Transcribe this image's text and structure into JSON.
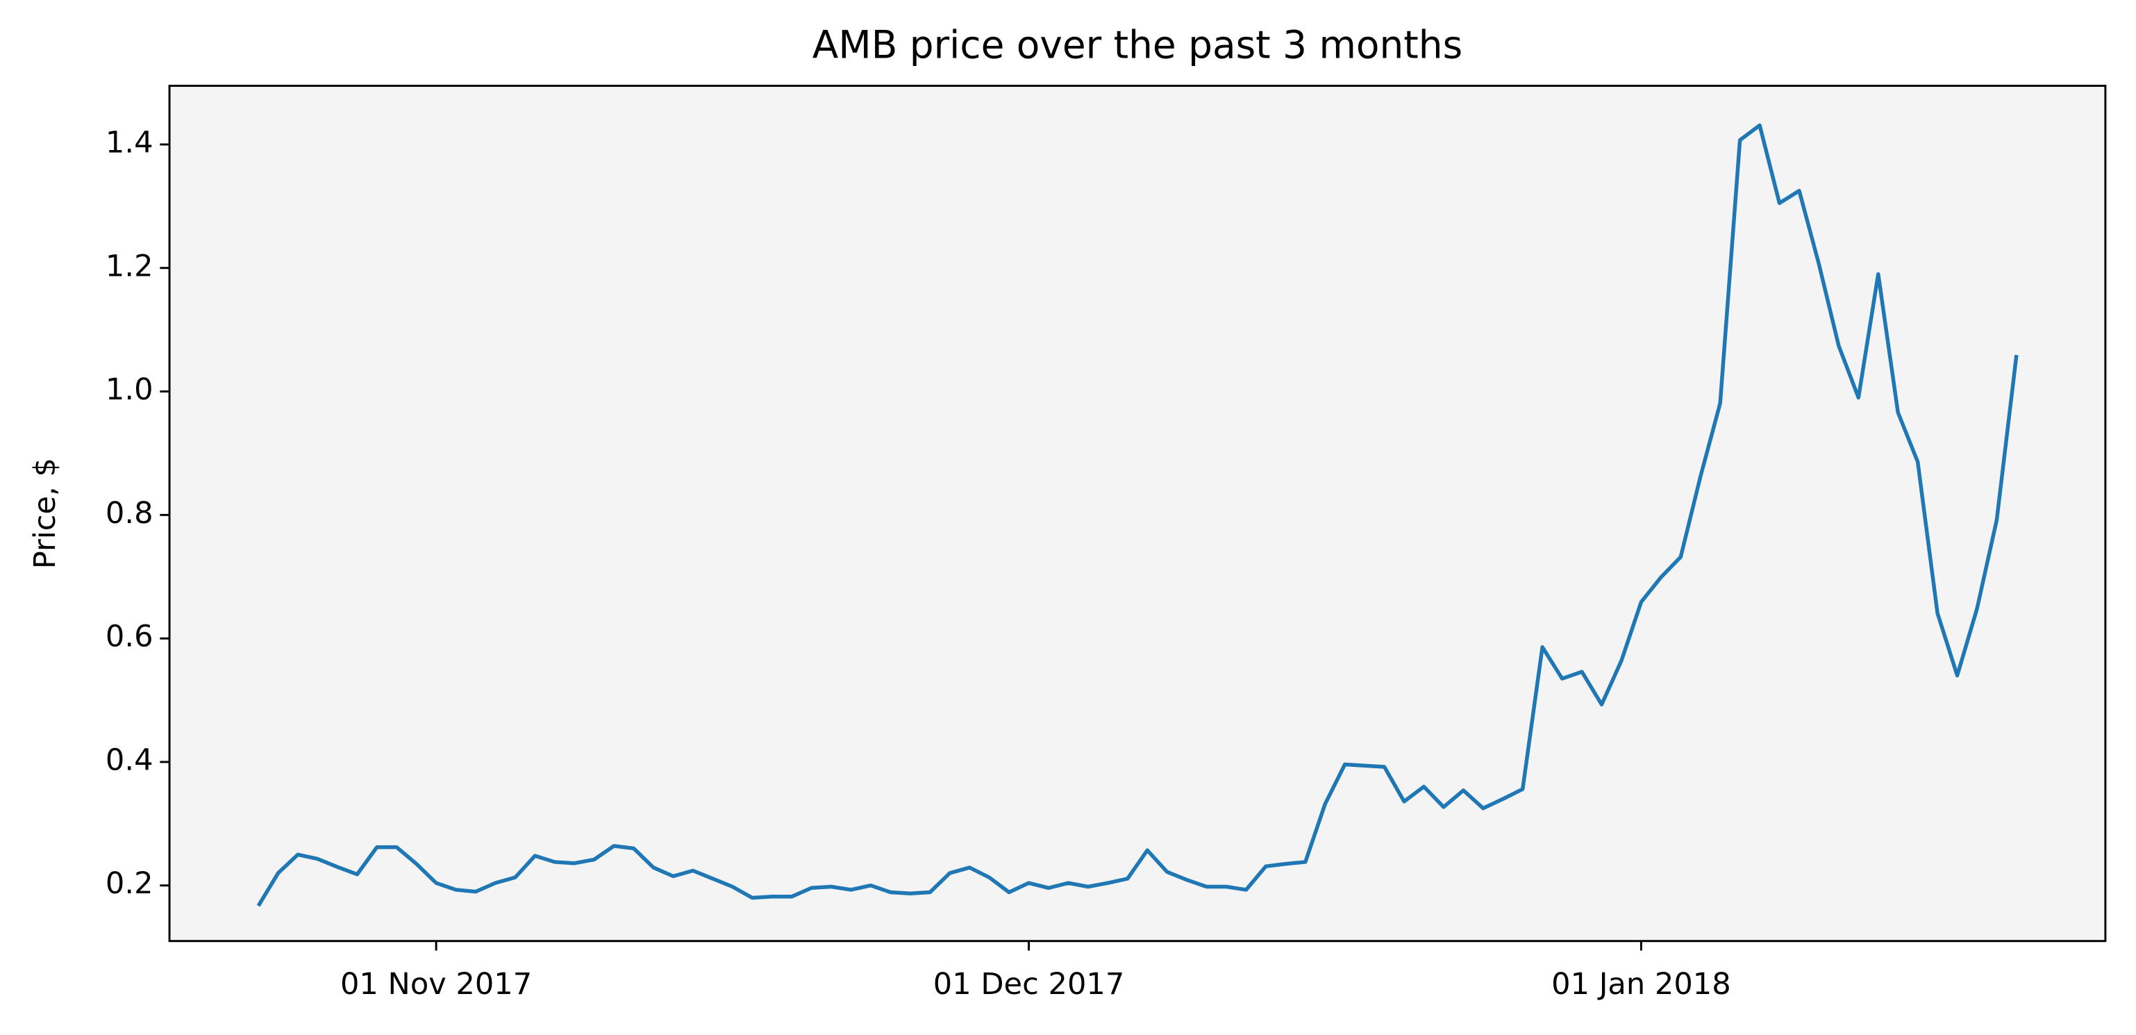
{
  "chart_data": {
    "type": "line",
    "title": "AMB price over the past 3 months",
    "ylabel": "Price, $",
    "x": [
      "2017-10-23",
      "2017-10-24",
      "2017-10-25",
      "2017-10-26",
      "2017-10-27",
      "2017-10-28",
      "2017-10-29",
      "2017-10-30",
      "2017-10-31",
      "2017-11-01",
      "2017-11-02",
      "2017-11-03",
      "2017-11-04",
      "2017-11-05",
      "2017-11-06",
      "2017-11-07",
      "2017-11-08",
      "2017-11-09",
      "2017-11-10",
      "2017-11-11",
      "2017-11-12",
      "2017-11-13",
      "2017-11-14",
      "2017-11-15",
      "2017-11-16",
      "2017-11-17",
      "2017-11-18",
      "2017-11-19",
      "2017-11-20",
      "2017-11-21",
      "2017-11-22",
      "2017-11-23",
      "2017-11-24",
      "2017-11-25",
      "2017-11-26",
      "2017-11-27",
      "2017-11-28",
      "2017-11-29",
      "2017-11-30",
      "2017-12-01",
      "2017-12-02",
      "2017-12-03",
      "2017-12-04",
      "2017-12-05",
      "2017-12-06",
      "2017-12-07",
      "2017-12-08",
      "2017-12-09",
      "2017-12-10",
      "2017-12-11",
      "2017-12-12",
      "2017-12-13",
      "2017-12-14",
      "2017-12-15",
      "2017-12-16",
      "2017-12-17",
      "2017-12-18",
      "2017-12-19",
      "2017-12-20",
      "2017-12-21",
      "2017-12-22",
      "2017-12-23",
      "2017-12-24",
      "2017-12-25",
      "2017-12-26",
      "2017-12-27",
      "2017-12-28",
      "2017-12-29",
      "2017-12-30",
      "2017-12-31",
      "2018-01-01",
      "2018-01-02",
      "2018-01-03",
      "2018-01-04",
      "2018-01-05",
      "2018-01-06",
      "2018-01-07",
      "2018-01-08",
      "2018-01-09",
      "2018-01-10",
      "2018-01-11",
      "2018-01-12",
      "2018-01-13",
      "2018-01-14",
      "2018-01-15",
      "2018-01-16",
      "2018-01-17",
      "2018-01-18",
      "2018-01-19",
      "2018-01-20"
    ],
    "series": [
      {
        "name": "AMB",
        "color": "#1f77b4",
        "values": [
          0.167,
          0.22,
          0.25,
          0.243,
          0.23,
          0.218,
          0.262,
          0.262,
          0.235,
          0.204,
          0.193,
          0.19,
          0.204,
          0.213,
          0.248,
          0.238,
          0.236,
          0.242,
          0.264,
          0.26,
          0.229,
          0.215,
          0.224,
          0.211,
          0.198,
          0.18,
          0.182,
          0.182,
          0.196,
          0.198,
          0.193,
          0.2,
          0.189,
          0.187,
          0.189,
          0.22,
          0.229,
          0.213,
          0.189,
          0.204,
          0.196,
          0.204,
          0.198,
          0.204,
          0.211,
          0.257,
          0.222,
          0.209,
          0.198,
          0.198,
          0.193,
          0.231,
          0.235,
          0.238,
          0.332,
          0.396,
          0.394,
          0.392,
          0.336,
          0.36,
          0.327,
          0.354,
          0.325,
          0.34,
          0.356,
          0.586,
          0.535,
          0.546,
          0.493,
          0.564,
          0.659,
          0.699,
          0.732,
          0.862,
          0.981,
          1.407,
          1.431,
          1.305,
          1.325,
          1.206,
          1.074,
          0.99,
          1.19,
          0.966,
          0.886,
          0.641,
          0.54,
          0.648,
          0.792,
          1.059
        ]
      }
    ],
    "xlim": [
      "2017-10-18T12:00:00Z",
      "2018-01-24T12:00:00Z"
    ],
    "xticks": [
      {
        "value": "2017-11-01",
        "label": "01 Nov 2017"
      },
      {
        "value": "2017-12-01",
        "label": "01 Dec 2017"
      },
      {
        "value": "2018-01-01",
        "label": "01 Jan 2018"
      }
    ],
    "ylim": [
      0.11,
      1.495
    ],
    "yticks": [
      0.2,
      0.4,
      0.6,
      0.8,
      1.0,
      1.2,
      1.4
    ],
    "ytick_labels": [
      "0.2",
      "0.4",
      "0.6",
      "0.8",
      "1.0",
      "1.2",
      "1.4"
    ],
    "grid": false,
    "background": "#f4f4f4"
  }
}
